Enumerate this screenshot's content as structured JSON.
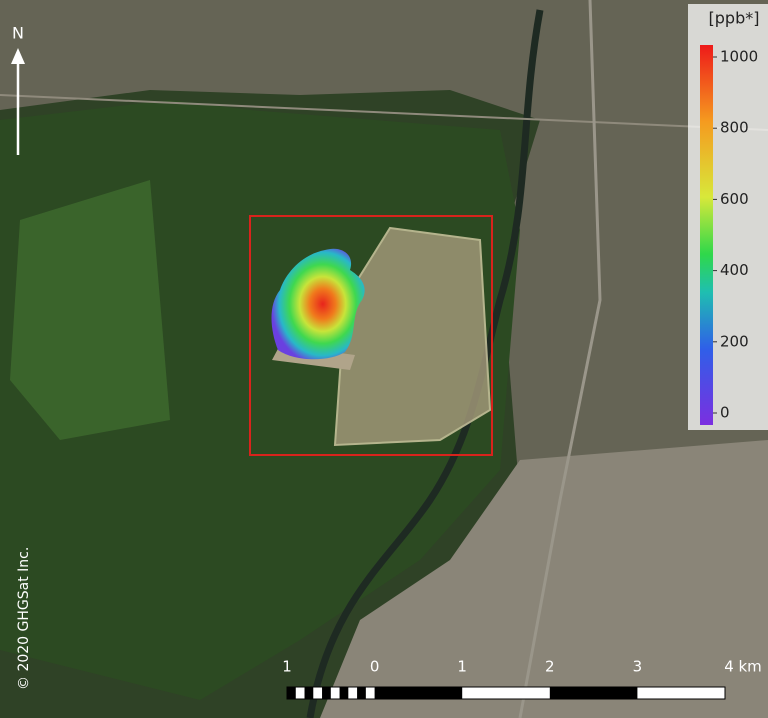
{
  "north_label": "N",
  "colorbar": {
    "title": "[ppb*]",
    "range": [
      0,
      1000
    ],
    "ticks": [
      0,
      200,
      400,
      600,
      800,
      1000
    ]
  },
  "scale_bar": {
    "labels": [
      "1",
      "0",
      "1",
      "2",
      "3",
      "4 km"
    ]
  },
  "copyright": "© 2020 GHGSat Inc."
}
